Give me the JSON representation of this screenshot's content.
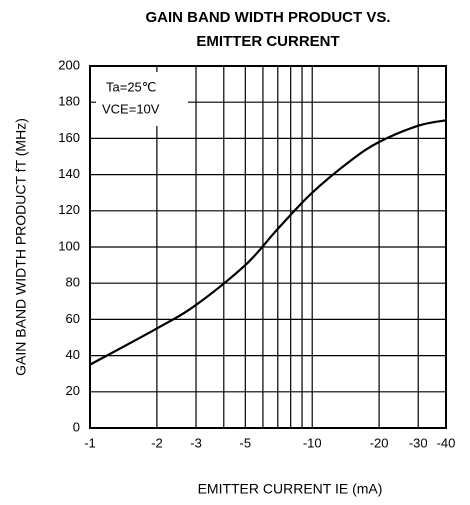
{
  "chart_data": {
    "type": "line",
    "title": [
      "GAIN BAND WIDTH PRODUCT VS.",
      "EMITTER CURRENT"
    ],
    "x_label": "EMITTER CURRENT   IE (mA)",
    "y_label": "GAIN BAND WIDTH PRODUCT   fT (MHz)",
    "annotations": [
      "Ta=25℃",
      "VCE=10V"
    ],
    "x": [
      -1,
      -2,
      -3,
      -5,
      -7,
      -10,
      -15,
      -20,
      -30,
      -40
    ],
    "values": [
      35,
      55,
      68,
      90,
      110,
      130,
      148,
      158,
      167,
      170
    ],
    "color": "#000000",
    "xscale": "log",
    "xlim": [
      -1,
      -40
    ],
    "xticks": [
      -1,
      -2,
      -3,
      -5,
      -10,
      -20,
      -30,
      -40
    ],
    "xminor": [
      -4,
      -6,
      -7,
      -8,
      -9
    ],
    "ylim": [
      0,
      200
    ],
    "yticks": [
      0,
      20,
      40,
      60,
      80,
      100,
      120,
      140,
      160,
      180,
      200
    ],
    "grid": true
  }
}
